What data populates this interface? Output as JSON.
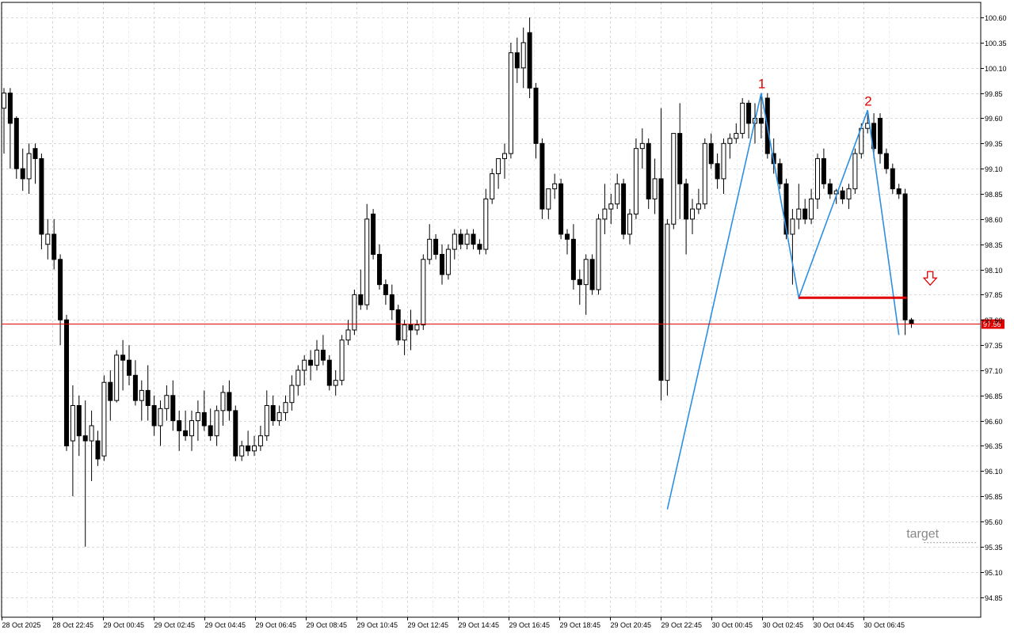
{
  "chart_data": {
    "type": "candlestick",
    "y_ticks": [
      "100.60",
      "100.35",
      "100.10",
      "99.85",
      "99.60",
      "99.35",
      "99.10",
      "98.85",
      "98.60",
      "98.35",
      "98.10",
      "97.85",
      "97.60",
      "97.35",
      "97.10",
      "96.85",
      "96.60",
      "96.35",
      "96.10",
      "95.85",
      "95.60",
      "95.35",
      "95.10",
      "94.85"
    ],
    "x_ticks": [
      "28 Oct 2025",
      "28 Oct 22:45",
      "29 Oct 00:45",
      "29 Oct 02:45",
      "29 Oct 04:45",
      "29 Oct 06:45",
      "29 Oct 08:45",
      "29 Oct 10:45",
      "29 Oct 12:45",
      "29 Oct 14:45",
      "29 Oct 16:45",
      "29 Oct 18:45",
      "29 Oct 20:45",
      "29 Oct 22:45",
      "30 Oct 00:45",
      "30 Oct 02:45",
      "30 Oct 04:45",
      "30 Oct 06:45"
    ],
    "ylim": [
      94.65,
      100.75
    ],
    "grid": true,
    "current_price": {
      "value": 97.56,
      "label": "97.56",
      "color": "#e00000"
    },
    "candles": [
      {
        "o": 99.7,
        "h": 99.9,
        "l": 99.25,
        "c": 99.85
      },
      {
        "o": 99.85,
        "h": 99.9,
        "l": 99.1,
        "c": 99.55
      },
      {
        "o": 99.6,
        "h": 99.62,
        "l": 99.0,
        "c": 99.1
      },
      {
        "o": 99.1,
        "h": 99.3,
        "l": 98.88,
        "c": 99.0
      },
      {
        "o": 99.0,
        "h": 99.35,
        "l": 98.85,
        "c": 99.25
      },
      {
        "o": 99.3,
        "h": 99.35,
        "l": 98.95,
        "c": 99.2
      },
      {
        "o": 99.2,
        "h": 99.25,
        "l": 98.3,
        "c": 98.45
      },
      {
        "o": 98.35,
        "h": 98.6,
        "l": 98.2,
        "c": 98.45
      },
      {
        "o": 98.45,
        "h": 98.6,
        "l": 98.1,
        "c": 98.2
      },
      {
        "o": 98.2,
        "h": 98.25,
        "l": 97.35,
        "c": 97.6
      },
      {
        "o": 97.6,
        "h": 97.65,
        "l": 96.3,
        "c": 96.35
      },
      {
        "o": 96.4,
        "h": 96.95,
        "l": 95.85,
        "c": 96.75
      },
      {
        "o": 96.75,
        "h": 96.85,
        "l": 96.25,
        "c": 96.45
      },
      {
        "o": 96.45,
        "h": 96.8,
        "l": 95.35,
        "c": 96.4
      },
      {
        "o": 96.4,
        "h": 96.7,
        "l": 96.0,
        "c": 96.55
      },
      {
        "o": 96.4,
        "h": 96.5,
        "l": 96.15,
        "c": 96.22
      },
      {
        "o": 96.25,
        "h": 97.05,
        "l": 96.2,
        "c": 96.98
      },
      {
        "o": 96.98,
        "h": 97.1,
        "l": 96.6,
        "c": 96.8
      },
      {
        "o": 96.8,
        "h": 97.3,
        "l": 96.78,
        "c": 97.25
      },
      {
        "o": 97.25,
        "h": 97.4,
        "l": 96.9,
        "c": 97.2
      },
      {
        "o": 97.2,
        "h": 97.35,
        "l": 96.95,
        "c": 97.05
      },
      {
        "o": 97.05,
        "h": 97.2,
        "l": 96.75,
        "c": 96.8
      },
      {
        "o": 96.8,
        "h": 97.0,
        "l": 96.6,
        "c": 96.9
      },
      {
        "o": 96.9,
        "h": 97.15,
        "l": 96.6,
        "c": 96.75
      },
      {
        "o": 96.75,
        "h": 96.85,
        "l": 96.45,
        "c": 96.55
      },
      {
        "o": 96.55,
        "h": 96.8,
        "l": 96.35,
        "c": 96.72
      },
      {
        "o": 96.72,
        "h": 96.95,
        "l": 96.6,
        "c": 96.85
      },
      {
        "o": 96.85,
        "h": 97.0,
        "l": 96.5,
        "c": 96.6
      },
      {
        "o": 96.6,
        "h": 96.7,
        "l": 96.3,
        "c": 96.5
      },
      {
        "o": 96.5,
        "h": 96.7,
        "l": 96.4,
        "c": 96.45
      },
      {
        "o": 96.45,
        "h": 96.7,
        "l": 96.3,
        "c": 96.6
      },
      {
        "o": 96.6,
        "h": 96.8,
        "l": 96.4,
        "c": 96.68
      },
      {
        "o": 96.68,
        "h": 96.9,
        "l": 96.5,
        "c": 96.55
      },
      {
        "o": 96.55,
        "h": 96.72,
        "l": 96.4,
        "c": 96.45
      },
      {
        "o": 96.45,
        "h": 96.75,
        "l": 96.35,
        "c": 96.7
      },
      {
        "o": 96.7,
        "h": 96.95,
        "l": 96.55,
        "c": 96.88
      },
      {
        "o": 96.88,
        "h": 97.0,
        "l": 96.6,
        "c": 96.7
      },
      {
        "o": 96.7,
        "h": 96.75,
        "l": 96.2,
        "c": 96.25
      },
      {
        "o": 96.25,
        "h": 96.4,
        "l": 96.2,
        "c": 96.35
      },
      {
        "o": 96.35,
        "h": 96.5,
        "l": 96.25,
        "c": 96.3
      },
      {
        "o": 96.3,
        "h": 96.45,
        "l": 96.25,
        "c": 96.35
      },
      {
        "o": 96.35,
        "h": 96.55,
        "l": 96.3,
        "c": 96.45
      },
      {
        "o": 96.45,
        "h": 96.9,
        "l": 96.4,
        "c": 96.75
      },
      {
        "o": 96.75,
        "h": 96.85,
        "l": 96.55,
        "c": 96.6
      },
      {
        "o": 96.6,
        "h": 96.75,
        "l": 96.55,
        "c": 96.68
      },
      {
        "o": 96.68,
        "h": 96.85,
        "l": 96.6,
        "c": 96.78
      },
      {
        "o": 96.78,
        "h": 97.05,
        "l": 96.7,
        "c": 96.95
      },
      {
        "o": 96.95,
        "h": 97.15,
        "l": 96.85,
        "c": 97.1
      },
      {
        "o": 97.1,
        "h": 97.25,
        "l": 96.95,
        "c": 97.2
      },
      {
        "o": 97.2,
        "h": 97.3,
        "l": 97.0,
        "c": 97.15
      },
      {
        "o": 97.15,
        "h": 97.4,
        "l": 97.1,
        "c": 97.3
      },
      {
        "o": 97.3,
        "h": 97.45,
        "l": 97.15,
        "c": 97.2
      },
      {
        "o": 97.2,
        "h": 97.25,
        "l": 96.9,
        "c": 96.95
      },
      {
        "o": 96.95,
        "h": 97.1,
        "l": 96.85,
        "c": 97.0
      },
      {
        "o": 97.0,
        "h": 97.45,
        "l": 96.95,
        "c": 97.4
      },
      {
        "o": 97.4,
        "h": 97.6,
        "l": 97.35,
        "c": 97.5
      },
      {
        "o": 97.5,
        "h": 97.9,
        "l": 97.45,
        "c": 97.85
      },
      {
        "o": 97.85,
        "h": 98.1,
        "l": 97.7,
        "c": 97.75
      },
      {
        "o": 97.75,
        "h": 98.75,
        "l": 97.7,
        "c": 98.6
      },
      {
        "o": 98.65,
        "h": 98.7,
        "l": 98.2,
        "c": 98.25
      },
      {
        "o": 98.25,
        "h": 98.35,
        "l": 97.9,
        "c": 97.95
      },
      {
        "o": 97.95,
        "h": 98.0,
        "l": 97.75,
        "c": 97.85
      },
      {
        "o": 97.85,
        "h": 97.95,
        "l": 97.6,
        "c": 97.7
      },
      {
        "o": 97.7,
        "h": 97.75,
        "l": 97.35,
        "c": 97.4
      },
      {
        "o": 97.4,
        "h": 97.6,
        "l": 97.25,
        "c": 97.55
      },
      {
        "o": 97.55,
        "h": 97.7,
        "l": 97.3,
        "c": 97.5
      },
      {
        "o": 97.5,
        "h": 97.6,
        "l": 97.45,
        "c": 97.55
      },
      {
        "o": 97.55,
        "h": 98.25,
        "l": 97.5,
        "c": 98.2
      },
      {
        "o": 98.2,
        "h": 98.55,
        "l": 98.15,
        "c": 98.4
      },
      {
        "o": 98.4,
        "h": 98.45,
        "l": 98.2,
        "c": 98.25
      },
      {
        "o": 98.25,
        "h": 98.35,
        "l": 97.95,
        "c": 98.05
      },
      {
        "o": 98.05,
        "h": 98.35,
        "l": 98.0,
        "c": 98.3
      },
      {
        "o": 98.3,
        "h": 98.5,
        "l": 98.2,
        "c": 98.45
      },
      {
        "o": 98.45,
        "h": 98.5,
        "l": 98.3,
        "c": 98.35
      },
      {
        "o": 98.35,
        "h": 98.5,
        "l": 98.3,
        "c": 98.45
      },
      {
        "o": 98.45,
        "h": 98.5,
        "l": 98.3,
        "c": 98.35
      },
      {
        "o": 98.35,
        "h": 98.4,
        "l": 98.25,
        "c": 98.3
      },
      {
        "o": 98.3,
        "h": 98.9,
        "l": 98.25,
        "c": 98.8
      },
      {
        "o": 98.8,
        "h": 99.1,
        "l": 98.75,
        "c": 99.05
      },
      {
        "o": 99.05,
        "h": 99.2,
        "l": 98.9,
        "c": 99.2
      },
      {
        "o": 99.2,
        "h": 99.35,
        "l": 99.0,
        "c": 99.25
      },
      {
        "o": 99.25,
        "h": 100.35,
        "l": 99.2,
        "c": 100.25
      },
      {
        "o": 100.25,
        "h": 100.4,
        "l": 99.95,
        "c": 100.1
      },
      {
        "o": 100.1,
        "h": 100.5,
        "l": 99.9,
        "c": 100.35
      },
      {
        "o": 100.45,
        "h": 100.6,
        "l": 99.8,
        "c": 99.9
      },
      {
        "o": 99.9,
        "h": 99.95,
        "l": 99.2,
        "c": 99.35
      },
      {
        "o": 99.35,
        "h": 99.4,
        "l": 98.6,
        "c": 98.7
      },
      {
        "o": 98.7,
        "h": 98.9,
        "l": 98.6,
        "c": 98.9
      },
      {
        "o": 98.9,
        "h": 99.05,
        "l": 98.8,
        "c": 98.95
      },
      {
        "o": 98.95,
        "h": 99.0,
        "l": 98.4,
        "c": 98.45
      },
      {
        "o": 98.45,
        "h": 98.5,
        "l": 98.25,
        "c": 98.4
      },
      {
        "o": 98.4,
        "h": 98.55,
        "l": 97.9,
        "c": 98.0
      },
      {
        "o": 98.0,
        "h": 98.1,
        "l": 97.75,
        "c": 97.95
      },
      {
        "o": 97.95,
        "h": 98.25,
        "l": 97.65,
        "c": 98.2
      },
      {
        "o": 98.2,
        "h": 98.25,
        "l": 97.85,
        "c": 97.9
      },
      {
        "o": 97.9,
        "h": 98.65,
        "l": 97.85,
        "c": 98.6
      },
      {
        "o": 98.6,
        "h": 98.95,
        "l": 98.45,
        "c": 98.7
      },
      {
        "o": 98.7,
        "h": 98.85,
        "l": 98.55,
        "c": 98.75
      },
      {
        "o": 98.75,
        "h": 99.05,
        "l": 98.7,
        "c": 98.95
      },
      {
        "o": 98.95,
        "h": 99.0,
        "l": 98.4,
        "c": 98.45
      },
      {
        "o": 98.45,
        "h": 98.7,
        "l": 98.35,
        "c": 98.65
      },
      {
        "o": 98.65,
        "h": 99.4,
        "l": 98.6,
        "c": 99.3
      },
      {
        "o": 99.3,
        "h": 99.5,
        "l": 99.1,
        "c": 99.35
      },
      {
        "o": 99.35,
        "h": 99.4,
        "l": 98.7,
        "c": 98.8
      },
      {
        "o": 98.8,
        "h": 99.2,
        "l": 98.65,
        "c": 99.0
      },
      {
        "o": 99.0,
        "h": 99.7,
        "l": 96.8,
        "c": 97.0
      },
      {
        "o": 97.0,
        "h": 98.6,
        "l": 96.85,
        "c": 98.55
      },
      {
        "o": 98.55,
        "h": 99.45,
        "l": 98.5,
        "c": 99.45
      },
      {
        "o": 99.45,
        "h": 99.75,
        "l": 98.6,
        "c": 98.95
      },
      {
        "o": 98.95,
        "h": 99.0,
        "l": 98.25,
        "c": 98.6
      },
      {
        "o": 98.6,
        "h": 98.8,
        "l": 98.45,
        "c": 98.7
      },
      {
        "o": 98.7,
        "h": 98.9,
        "l": 98.65,
        "c": 98.75
      },
      {
        "o": 98.75,
        "h": 99.4,
        "l": 98.7,
        "c": 99.35
      },
      {
        "o": 99.35,
        "h": 99.45,
        "l": 99.1,
        "c": 99.15
      },
      {
        "o": 99.15,
        "h": 99.25,
        "l": 98.9,
        "c": 99.0
      },
      {
        "o": 99.0,
        "h": 99.4,
        "l": 98.85,
        "c": 99.35
      },
      {
        "o": 99.35,
        "h": 99.45,
        "l": 99.2,
        "c": 99.4
      },
      {
        "o": 99.4,
        "h": 99.55,
        "l": 99.35,
        "c": 99.45
      },
      {
        "o": 99.45,
        "h": 99.8,
        "l": 99.4,
        "c": 99.75
      },
      {
        "o": 99.75,
        "h": 99.78,
        "l": 99.4,
        "c": 99.55
      },
      {
        "o": 99.55,
        "h": 99.75,
        "l": 99.35,
        "c": 99.6
      },
      {
        "o": 99.6,
        "h": 99.85,
        "l": 99.4,
        "c": 99.55
      },
      {
        "o": 99.8,
        "h": 99.85,
        "l": 99.2,
        "c": 99.25
      },
      {
        "o": 99.25,
        "h": 99.4,
        "l": 99.05,
        "c": 99.15
      },
      {
        "o": 99.15,
        "h": 99.2,
        "l": 98.9,
        "c": 98.95
      },
      {
        "o": 98.95,
        "h": 99.0,
        "l": 98.4,
        "c": 98.45
      },
      {
        "o": 98.45,
        "h": 98.7,
        "l": 97.95,
        "c": 98.6
      },
      {
        "o": 98.6,
        "h": 98.95,
        "l": 98.5,
        "c": 98.7
      },
      {
        "o": 98.7,
        "h": 98.8,
        "l": 98.55,
        "c": 98.6
      },
      {
        "o": 98.6,
        "h": 98.9,
        "l": 98.55,
        "c": 98.8
      },
      {
        "o": 98.8,
        "h": 99.25,
        "l": 98.7,
        "c": 99.2
      },
      {
        "o": 99.2,
        "h": 99.3,
        "l": 98.9,
        "c": 98.95
      },
      {
        "o": 98.95,
        "h": 99.0,
        "l": 98.8,
        "c": 98.85
      },
      {
        "o": 98.85,
        "h": 98.9,
        "l": 98.75,
        "c": 98.88
      },
      {
        "o": 98.88,
        "h": 98.92,
        "l": 98.75,
        "c": 98.8
      },
      {
        "o": 98.8,
        "h": 98.95,
        "l": 98.7,
        "c": 98.9
      },
      {
        "o": 98.9,
        "h": 99.3,
        "l": 98.85,
        "c": 99.25
      },
      {
        "o": 99.25,
        "h": 99.55,
        "l": 99.2,
        "c": 99.5
      },
      {
        "o": 99.5,
        "h": 99.65,
        "l": 99.45,
        "c": 99.55
      },
      {
        "o": 99.55,
        "h": 99.65,
        "l": 99.2,
        "c": 99.3
      },
      {
        "o": 99.6,
        "h": 99.65,
        "l": 99.15,
        "c": 99.25
      },
      {
        "o": 99.25,
        "h": 99.3,
        "l": 99.05,
        "c": 99.1
      },
      {
        "o": 99.1,
        "h": 99.15,
        "l": 98.85,
        "c": 98.9
      },
      {
        "o": 98.9,
        "h": 98.95,
        "l": 98.8,
        "c": 98.85
      },
      {
        "o": 98.85,
        "h": 98.9,
        "l": 97.45,
        "c": 97.6
      },
      {
        "o": 97.6,
        "h": 97.62,
        "l": 97.52,
        "c": 97.56
      }
    ],
    "pattern": {
      "color": "#2d8fe0",
      "points": [
        {
          "i": 106,
          "y": 95.72
        },
        {
          "i": 121,
          "y": 99.85
        },
        {
          "i": 127,
          "y": 97.82
        },
        {
          "i": 138,
          "y": 99.68
        },
        {
          "i": 143,
          "y": 97.45
        }
      ],
      "labels": [
        {
          "text": "1",
          "i": 121,
          "y": 99.85
        },
        {
          "text": "2",
          "i": 138,
          "y": 99.68
        }
      ],
      "label_color": "#e00000"
    },
    "neckline": {
      "value": 97.82,
      "from_i": 127,
      "to_i": 144,
      "color": "#e00000"
    },
    "sell_arrow": {
      "icon": "down-arrow-icon",
      "i": 148,
      "y": 98.0,
      "color": "#e00000"
    },
    "target": {
      "label": "target",
      "value": 95.39,
      "from_i": 148,
      "color": "#888888"
    }
  }
}
